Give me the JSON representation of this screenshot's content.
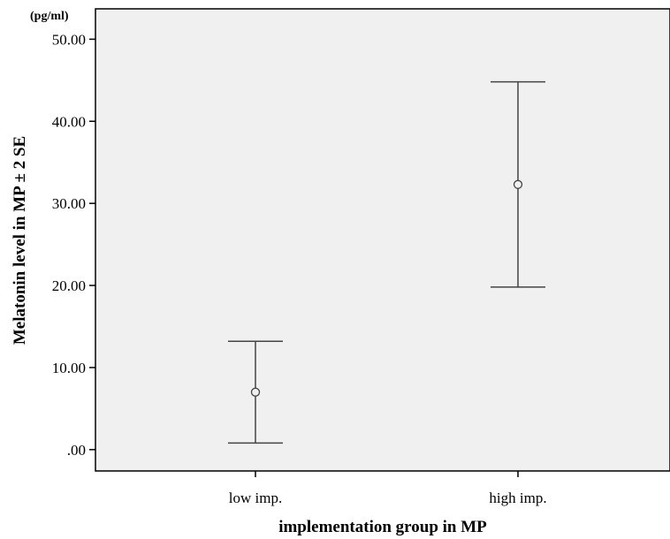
{
  "chart_data": {
    "type": "errorbar",
    "title": "",
    "unit_label": "(pg/ml)",
    "xlabel": "implementation group in MP",
    "ylabel": "Melatonin level in MP ± 2 SE",
    "categories": [
      "low imp.",
      "high imp."
    ],
    "series": [
      {
        "values": [
          7.0,
          32.3
        ],
        "lower": [
          0.8,
          19.8
        ],
        "upper": [
          13.2,
          44.8
        ]
      }
    ],
    "yticks": [
      0,
      10,
      20,
      30,
      40,
      50
    ],
    "ytick_labels": [
      ".00",
      "10.00",
      "20.00",
      "30.00",
      "40.00",
      "50.00"
    ],
    "ylim": [
      -2.6,
      53.7
    ],
    "grid": false,
    "legend": "none",
    "colors": {
      "plot_background": "#f0f0f0",
      "marks": "#444444",
      "axis": "#000000"
    }
  }
}
